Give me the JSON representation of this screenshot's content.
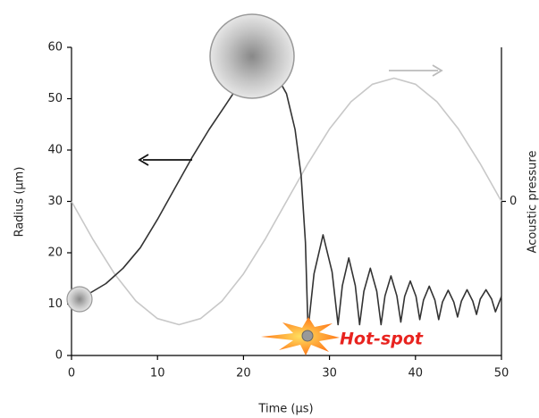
{
  "chart_data": {
    "type": "line",
    "xlabel": "Time (µs)",
    "ylabel": "Radius (µm)",
    "y2label": "Acoustic pressure",
    "annotation": "Hot-spot",
    "xlim": [
      0,
      50
    ],
    "xticks": [
      0,
      10,
      20,
      30,
      40,
      50
    ],
    "ylim": [
      0,
      60
    ],
    "yticks": [
      0,
      10,
      20,
      30,
      40,
      50,
      60
    ],
    "y2lim": [
      -1.25,
      1.25
    ],
    "y2ticks": [
      0
    ],
    "grid": false,
    "series": [
      {
        "color": "#c8c8c8",
        "axis": "y2",
        "x": [
          0,
          2.5,
          5,
          7.5,
          10,
          12.5,
          15,
          17.5,
          20,
          22.5,
          25,
          27.5,
          30,
          32.5,
          35,
          37.5,
          40,
          42.5,
          45,
          47.5,
          50
        ],
        "values": [
          0,
          -0.309,
          -0.588,
          -0.809,
          -0.951,
          -1,
          -0.951,
          -0.809,
          -0.588,
          -0.309,
          0,
          0.309,
          0.588,
          0.809,
          0.951,
          1,
          0.951,
          0.809,
          0.588,
          0.309,
          0
        ]
      },
      {
        "color": "#333333",
        "x": [
          0,
          2,
          4,
          6,
          8,
          10,
          12,
          14,
          16,
          18,
          20,
          21.5,
          23,
          25,
          26,
          26.7,
          27.2,
          27.5,
          28.2,
          29.25,
          30.3,
          31,
          31.5,
          32.25,
          33,
          33.5,
          34,
          34.75,
          35.5,
          36,
          36.46,
          37.15,
          37.84,
          38.3,
          38.74,
          39.4,
          40.06,
          40.5,
          40.94,
          41.6,
          42.26,
          42.7,
          43.14,
          43.8,
          44.46,
          44.9,
          45.34,
          46,
          46.66,
          47.1,
          47.54,
          48.2,
          48.86,
          49.3,
          50
        ],
        "values": [
          10.5,
          12,
          14,
          17,
          21,
          26.5,
          32.5,
          38.5,
          44,
          49,
          54,
          58,
          57,
          51,
          44,
          35,
          22,
          5,
          15.9,
          23.5,
          16.3,
          6,
          13.6,
          19,
          13.6,
          6,
          12.5,
          17,
          12.5,
          6,
          11.6,
          15.5,
          11.6,
          6.5,
          11.5,
          14.5,
          11.5,
          7,
          10.8,
          13.5,
          10.8,
          7,
          10.4,
          12.7,
          10.4,
          7.5,
          10.6,
          12.8,
          10.6,
          8,
          11,
          12.8,
          11,
          8.5,
          11.5
        ]
      }
    ]
  }
}
